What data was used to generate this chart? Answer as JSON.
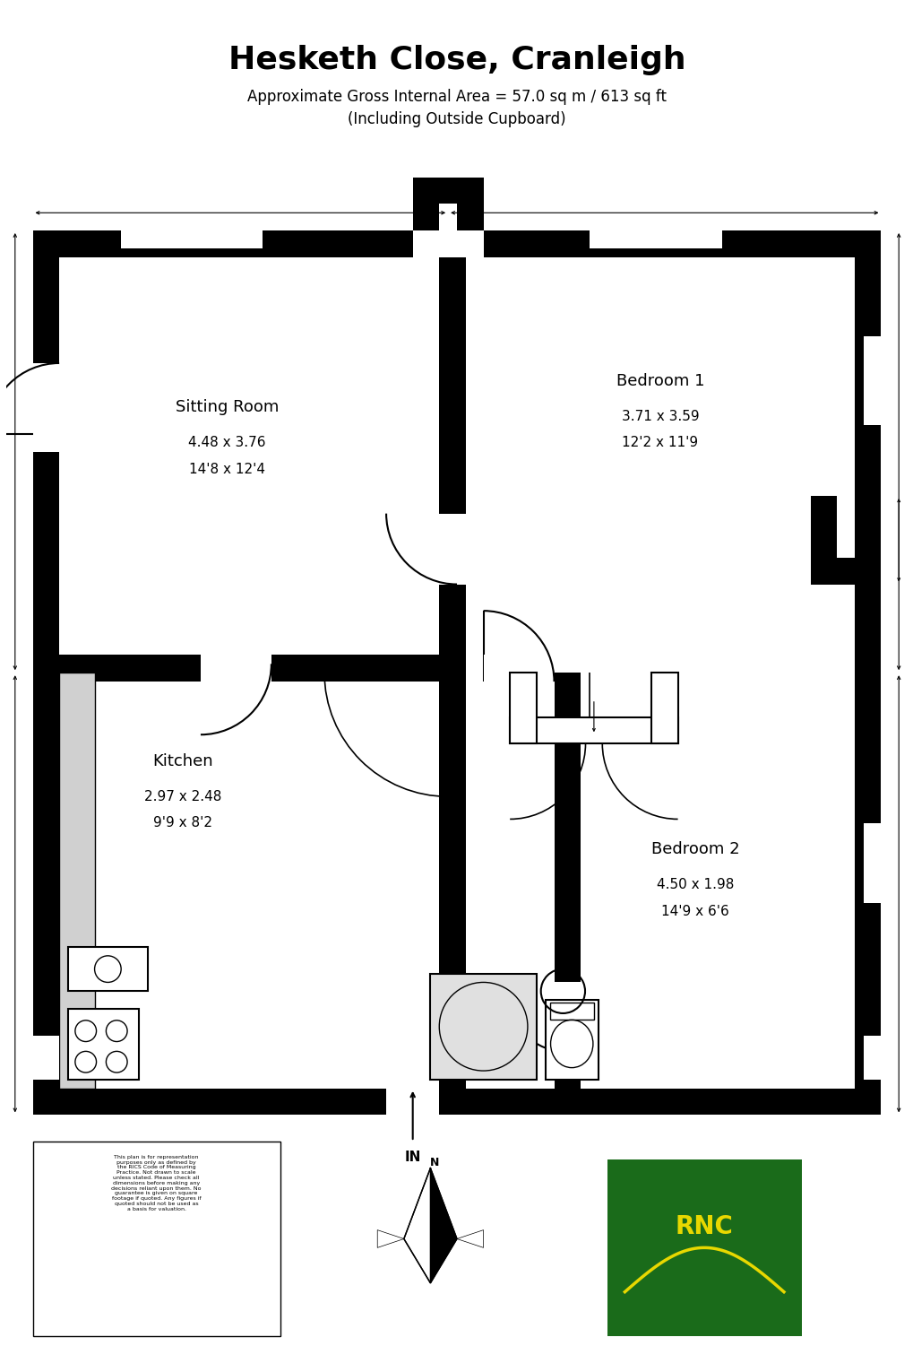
{
  "title": "Hesketh Close, Cranleigh",
  "subtitle1": "Approximate Gross Internal Area = 57.0 sq m / 613 sq ft",
  "subtitle2": "(Including Outside Cupboard)",
  "disclaimer": "This plan is for representation\npurposes only as defined by\nthe RICS Code of Measuring\nPractice. Not drawn to scale\nunless stated. Please check all\ndimensions before making any\ndecisions reliant upon them. No\nguarantee is given on square\nfootage if quoted. Any figures if\nquoted should not be used as\na basis for valuation.",
  "sitting_room_label": "Sitting Room",
  "sitting_room_dim1": "4.48 x 3.76",
  "sitting_room_dim2": "14'8 x 12'4",
  "bedroom1_label": "Bedroom 1",
  "bedroom1_dim1": "3.71 x 3.59",
  "bedroom1_dim2": "12'2 x 11'9",
  "bedroom2_label": "Bedroom 2",
  "bedroom2_dim1": "4.50 x 1.98",
  "bedroom2_dim2": "14'9 x 6'6",
  "kitchen_label": "Kitchen",
  "kitchen_dim1": "2.97 x 2.48",
  "kitchen_dim2": "9'9 x 8'2",
  "bg_color": "#ffffff",
  "rnc_green": "#1a6b1a",
  "rnc_yellow": "#e8d800"
}
